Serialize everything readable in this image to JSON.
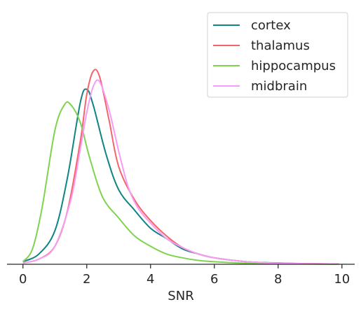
{
  "chart_data": {
    "type": "line",
    "title": "",
    "xlabel": "SNR",
    "ylabel": "",
    "xlim": [
      -0.5,
      10.4
    ],
    "ylim": [
      0,
      1.0
    ],
    "x_ticks": [
      0,
      2,
      4,
      6,
      8,
      10
    ],
    "x_tick_labels": [
      "0",
      "2",
      "4",
      "6",
      "8",
      "10"
    ],
    "grid": false,
    "legend_position": "top-right",
    "series": [
      {
        "name": "cortex",
        "color": "#0e8484",
        "x": [
          0,
          0.5,
          1.0,
          1.4,
          1.8,
          2.0,
          2.2,
          2.6,
          3.0,
          3.5,
          4.0,
          4.5,
          5.0,
          5.5,
          6.0,
          7.0,
          8.0,
          9.0,
          9.9
        ],
        "y": [
          0.01,
          0.04,
          0.13,
          0.34,
          0.63,
          0.68,
          0.62,
          0.43,
          0.29,
          0.21,
          0.14,
          0.1,
          0.06,
          0.04,
          0.025,
          0.01,
          0.005,
          0.002,
          0.001
        ]
      },
      {
        "name": "thalamus",
        "color": "#f5646a",
        "x": [
          0,
          0.5,
          1.0,
          1.4,
          1.8,
          2.0,
          2.2,
          2.4,
          2.7,
          3.0,
          3.5,
          4.0,
          4.5,
          5.0,
          5.5,
          6.0,
          7.0,
          8.0,
          9.0,
          9.9
        ],
        "y": [
          0.005,
          0.02,
          0.07,
          0.21,
          0.48,
          0.66,
          0.75,
          0.73,
          0.56,
          0.38,
          0.25,
          0.17,
          0.11,
          0.065,
          0.04,
          0.025,
          0.01,
          0.004,
          0.002,
          0.001
        ]
      },
      {
        "name": "hippocampus",
        "color": "#7fd34e",
        "x": [
          0,
          0.3,
          0.6,
          1.0,
          1.3,
          1.5,
          1.8,
          2.1,
          2.5,
          3.0,
          3.5,
          4.0,
          4.5,
          5.0,
          5.5,
          6.0,
          7.0,
          8.0,
          9.0,
          9.9
        ],
        "y": [
          0.01,
          0.06,
          0.22,
          0.52,
          0.62,
          0.62,
          0.55,
          0.41,
          0.26,
          0.18,
          0.11,
          0.07,
          0.04,
          0.025,
          0.015,
          0.01,
          0.004,
          0.002,
          0.001,
          0.0005
        ]
      },
      {
        "name": "midbrain",
        "color": "#f79cf4",
        "x": [
          0,
          0.5,
          1.0,
          1.5,
          1.8,
          2.0,
          2.2,
          2.4,
          2.7,
          3.0,
          3.3,
          3.6,
          4.0,
          4.5,
          5.0,
          5.5,
          6.0,
          7.0,
          8.0,
          9.0,
          9.9
        ],
        "y": [
          0.005,
          0.02,
          0.07,
          0.25,
          0.45,
          0.59,
          0.69,
          0.71,
          0.6,
          0.44,
          0.3,
          0.22,
          0.16,
          0.1,
          0.065,
          0.04,
          0.025,
          0.01,
          0.004,
          0.002,
          0.001
        ]
      }
    ]
  }
}
